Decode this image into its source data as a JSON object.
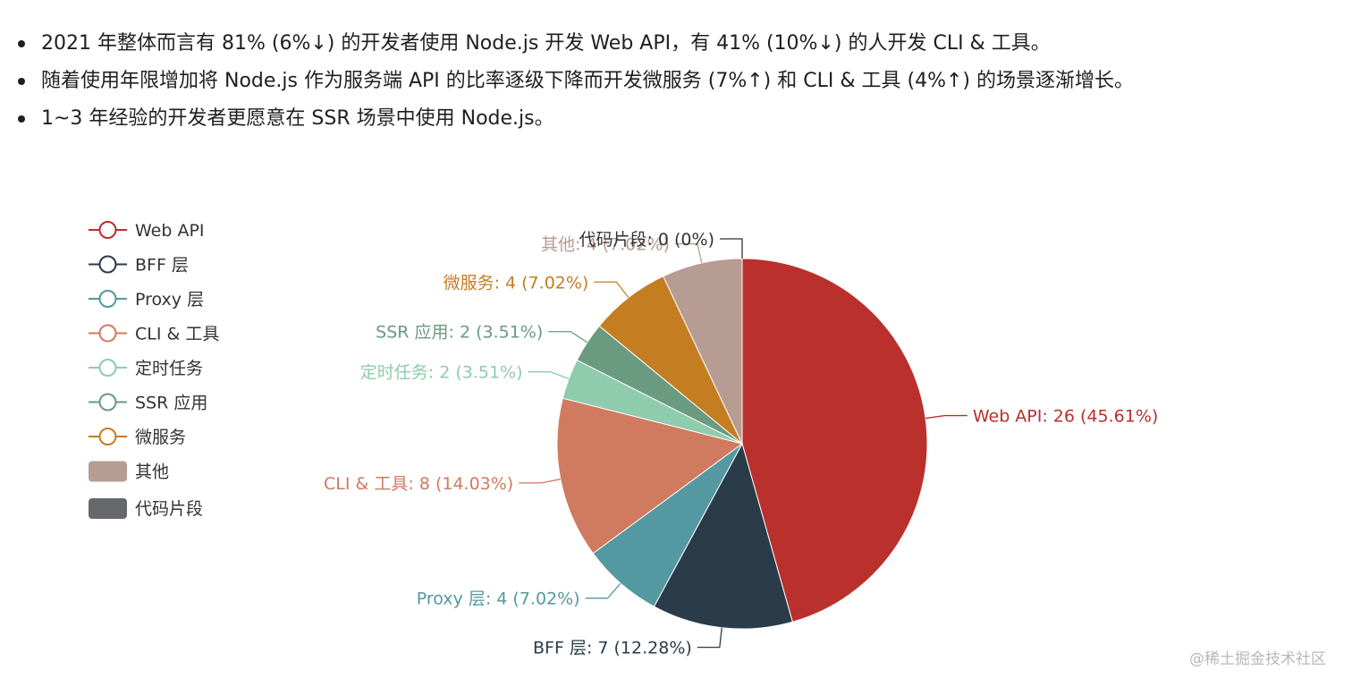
{
  "bullets": [
    "2021 年整体而言有 81% (6%↓) 的开发者使用 Node.js 开发 Web API，有 41% (10%↓) 的人开发 CLI & 工具。",
    "随着使用年限增加将 Node.js 作为服务端 API 的比率逐级下降而开发微服务 (7%↑) 和 CLI & 工具 (4%↑) 的场景逐渐增长。",
    "1~3 年经验的开发者更愿意在 SSR 场景中使用 Node.js。"
  ],
  "chart_data": {
    "type": "pie",
    "legend_position": "left",
    "slices": [
      {
        "name": "Web API",
        "value": 26,
        "percent": "45.61%",
        "color": "#b9302c",
        "label": "Web API: 26 (45.61%)",
        "legend_style": "line-circle"
      },
      {
        "name": "BFF 层",
        "value": 7,
        "percent": "12.28%",
        "color": "#2a3b4a",
        "label": "BFF 层: 7 (12.28%)",
        "legend_style": "line-circle"
      },
      {
        "name": "Proxy 层",
        "value": 4,
        "percent": "7.02%",
        "color": "#5498a1",
        "label": "Proxy 层: 4 (7.02%)",
        "legend_style": "line-circle"
      },
      {
        "name": "CLI & 工具",
        "value": 8,
        "percent": "14.03%",
        "color": "#d07a5f",
        "label": "CLI & 工具: 8 (14.03%)",
        "legend_style": "line-circle"
      },
      {
        "name": "定时任务",
        "value": 2,
        "percent": "3.51%",
        "color": "#8fcbad",
        "label": "定时任务: 2 (3.51%)",
        "legend_style": "line-circle"
      },
      {
        "name": "SSR 应用",
        "value": 2,
        "percent": "3.51%",
        "color": "#6a9a80",
        "label": "SSR 应用: 2 (3.51%)",
        "legend_style": "line-circle"
      },
      {
        "name": "微服务",
        "value": 4,
        "percent": "7.02%",
        "color": "#c57d22",
        "label": "微服务: 4 (7.02%)",
        "legend_style": "line-circle"
      },
      {
        "name": "其他",
        "value": 4,
        "percent": "7.02%",
        "color": "#b79c93",
        "label": "其他: 4 (7.02%)",
        "legend_style": "rect"
      },
      {
        "name": "代码片段",
        "value": 0,
        "percent": "0%",
        "color": "#66686c",
        "label": "代码片段: 0 (0%)",
        "legend_style": "rect"
      }
    ]
  },
  "watermark": "@稀土掘金技术社区"
}
